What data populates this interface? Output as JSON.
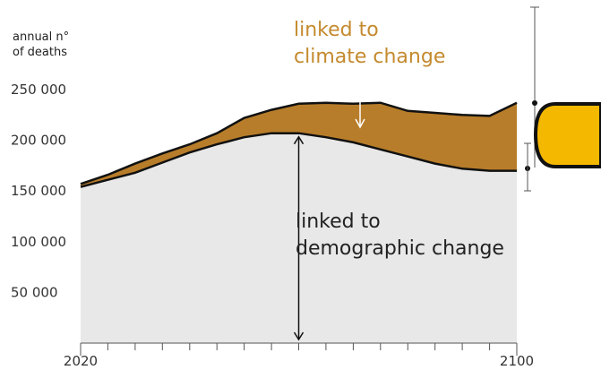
{
  "chart_data": {
    "type": "area",
    "ylabel_lines": [
      "annual n°",
      "of deaths"
    ],
    "x": [
      2020,
      2025,
      2030,
      2035,
      2040,
      2045,
      2050,
      2055,
      2060,
      2065,
      2070,
      2075,
      2080,
      2085,
      2090,
      2095,
      2100
    ],
    "xticks_labeled": [
      2020,
      2100
    ],
    "xlim": [
      2020,
      2100
    ],
    "ylim": [
      0,
      260000
    ],
    "yticks": [
      {
        "value": 50000,
        "label": "50 000"
      },
      {
        "value": 100000,
        "label": "100 000"
      },
      {
        "value": 150000,
        "label": "150 000"
      },
      {
        "value": 200000,
        "label": "200 000"
      },
      {
        "value": 250000,
        "label": "250 000"
      }
    ],
    "series": [
      {
        "key": "demographic",
        "values": [
          154000,
          161000,
          168000,
          178000,
          188000,
          196000,
          203000,
          207000,
          207000,
          203000,
          198000,
          191000,
          184000,
          177000,
          172000,
          170000,
          170000
        ]
      },
      {
        "key": "total",
        "values": [
          157000,
          166000,
          177000,
          187000,
          196000,
          207000,
          222000,
          230000,
          236000,
          237000,
          236000,
          237000,
          229000,
          227000,
          225000,
          224000,
          237000
        ]
      }
    ],
    "annotations": {
      "climate": [
        "linked to",
        "climate change"
      ],
      "demographic": [
        "linked to",
        "demographic change"
      ]
    },
    "colors": {
      "demographic_fill": "#e8e8e8",
      "climate_fill": "#b87d2a",
      "climate_text": "#c48a2e",
      "line": "#111111",
      "badge": "#f5b800"
    }
  }
}
